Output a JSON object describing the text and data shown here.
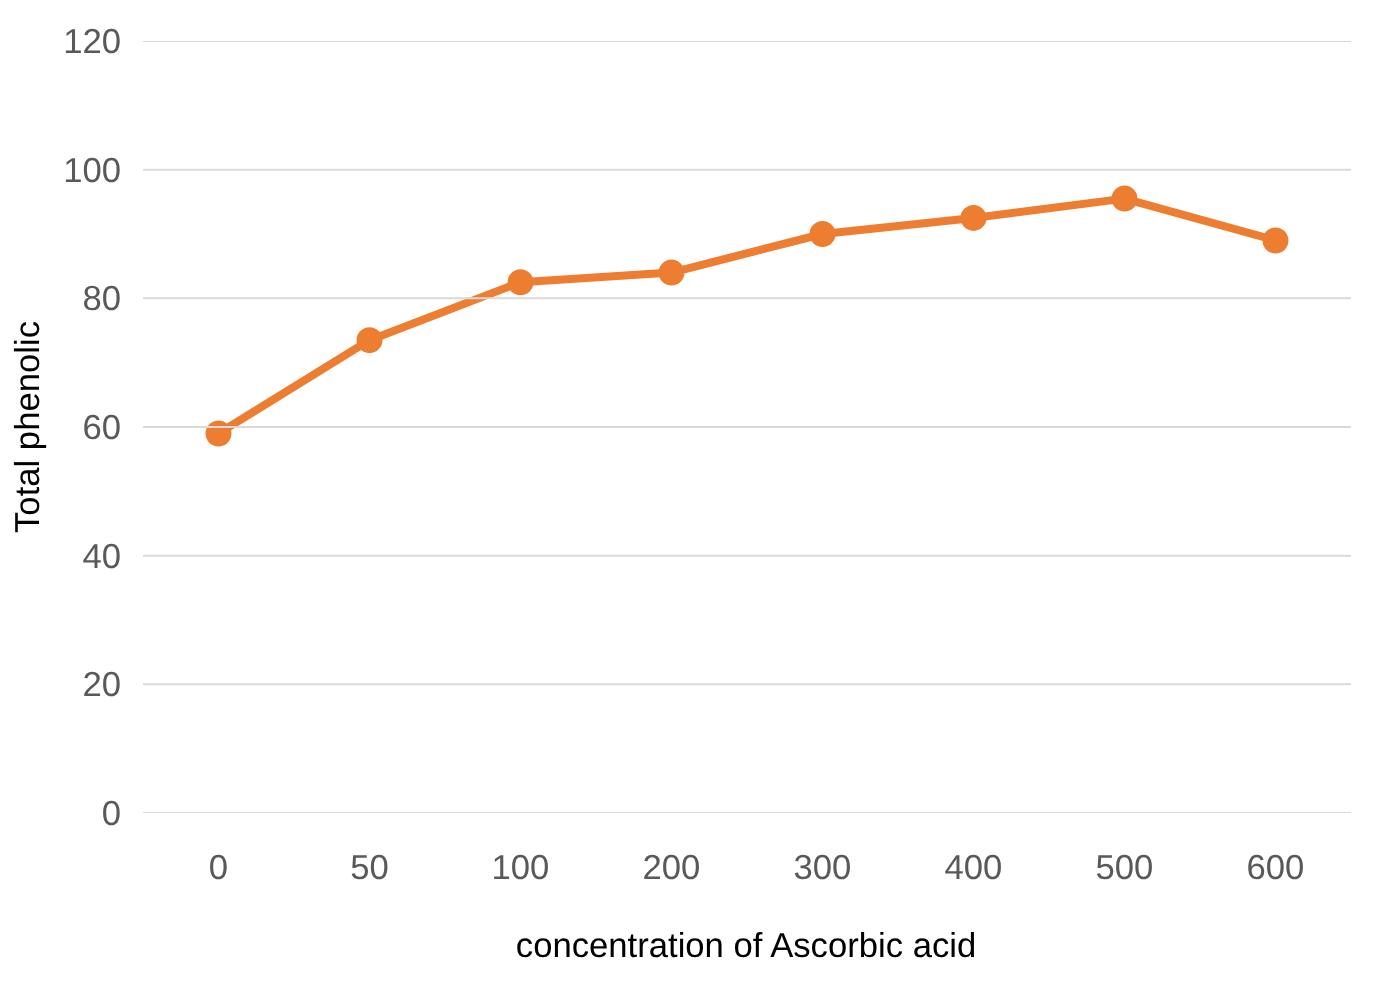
{
  "chart_data": {
    "type": "line",
    "xlabel": "concentration of Ascorbic acid",
    "ylabel": "Total phenolic",
    "categories": [
      "0",
      "50",
      "100",
      "200",
      "300",
      "400",
      "500",
      "600"
    ],
    "series": [
      {
        "color": "#ed7d31",
        "values": [
          59,
          73.5,
          82.5,
          84,
          90,
          92.5,
          95.5,
          89
        ]
      }
    ],
    "ylim": [
      0,
      120
    ],
    "yticks": [
      0,
      20,
      40,
      60,
      80,
      100,
      120
    ],
    "grid": "y",
    "marker": "circle",
    "line_style": "solid"
  }
}
